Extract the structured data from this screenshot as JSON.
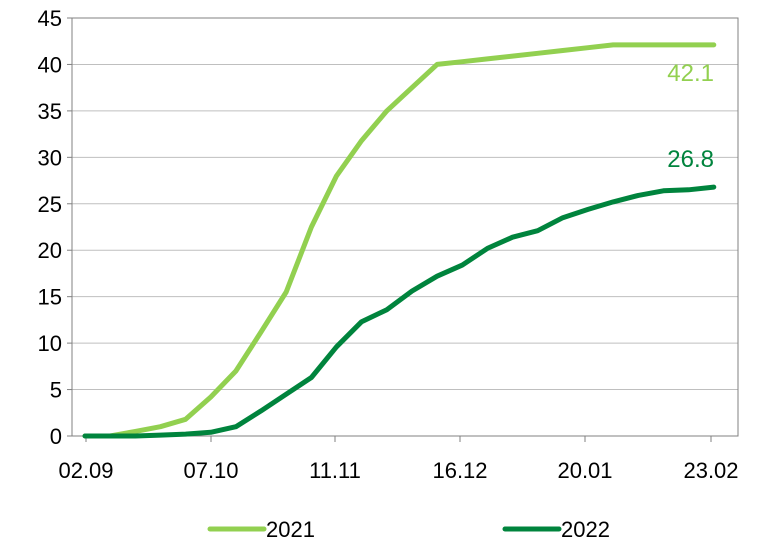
{
  "chart_data": {
    "type": "line",
    "title": "",
    "xlabel": "",
    "ylabel": "",
    "x_tick_labels": [
      "02.09",
      "07.10",
      "11.11",
      "16.12",
      "20.01",
      "23.02"
    ],
    "x": [
      0,
      1,
      2,
      3,
      4,
      5,
      6,
      7,
      8,
      9,
      10,
      11,
      12,
      13,
      14,
      15,
      16,
      17,
      18,
      19,
      20,
      21,
      22,
      23,
      24,
      25
    ],
    "ylim": [
      0,
      45
    ],
    "yticks": [
      0,
      5,
      10,
      15,
      20,
      25,
      30,
      35,
      40,
      45
    ],
    "grid": true,
    "legend_position": "bottom",
    "series": [
      {
        "name": "2021",
        "color": "#92d050",
        "values": [
          0,
          0,
          0.5,
          1,
          1.8,
          4.2,
          7,
          11.2,
          15.5,
          22.5,
          28,
          31.8,
          35,
          37.5,
          40,
          40.3,
          40.6,
          40.9,
          41.2,
          41.5,
          41.8,
          42.1,
          42.1,
          42.1,
          42.1,
          42.1
        ],
        "end_label": "42.1"
      },
      {
        "name": "2022",
        "color": "#00843d",
        "values": [
          0,
          0,
          0,
          0.1,
          0.2,
          0.4,
          1,
          2.7,
          4.5,
          6.3,
          9.6,
          12.3,
          13.6,
          15.6,
          17.2,
          18.4,
          20.2,
          21.4,
          22.1,
          23.5,
          24.4,
          25.2,
          25.9,
          26.4,
          26.5,
          26.8
        ],
        "end_label": "26.8"
      }
    ]
  }
}
